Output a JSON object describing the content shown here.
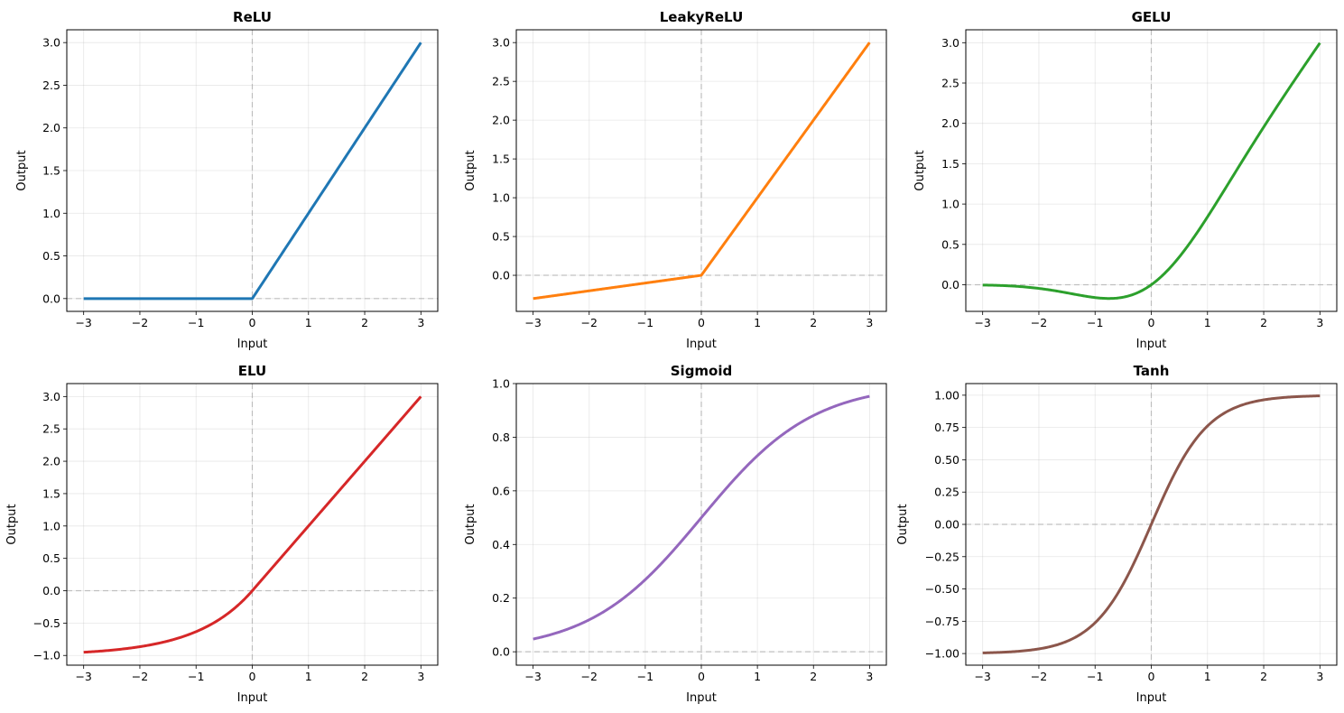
{
  "chart_data": [
    {
      "type": "line",
      "title": "ReLU",
      "xlabel": "Input",
      "ylabel": "Output",
      "function": "relu",
      "color": "#1f77b4",
      "xlim": [
        -3.3,
        3.3
      ],
      "ylim": [
        -0.15,
        3.15
      ],
      "xticks": [
        -3,
        -2,
        -1,
        0,
        1,
        2,
        3
      ],
      "xtick_labels": [
        "−3",
        "−2",
        "−1",
        "0",
        "1",
        "2",
        "3"
      ],
      "yticks": [
        0,
        0.5,
        1,
        1.5,
        2,
        2.5,
        3
      ],
      "ytick_labels": [
        "0.0",
        "0.5",
        "1.0",
        "1.5",
        "2.0",
        "2.5",
        "3.0"
      ],
      "x": [
        -3,
        -2,
        -1,
        0,
        1,
        2,
        3
      ],
      "y": [
        0,
        0,
        0,
        0,
        1,
        2,
        3
      ],
      "grid": true
    },
    {
      "type": "line",
      "title": "LeakyReLU",
      "xlabel": "Input",
      "ylabel": "Output",
      "function": "leakyrelu",
      "color": "#ff7f0e",
      "xlim": [
        -3.3,
        3.3
      ],
      "ylim": [
        -0.465,
        3.165
      ],
      "xticks": [
        -3,
        -2,
        -1,
        0,
        1,
        2,
        3
      ],
      "xtick_labels": [
        "−3",
        "−2",
        "−1",
        "0",
        "1",
        "2",
        "3"
      ],
      "yticks": [
        0,
        0.5,
        1,
        1.5,
        2,
        2.5,
        3
      ],
      "ytick_labels": [
        "0.0",
        "0.5",
        "1.0",
        "1.5",
        "2.0",
        "2.5",
        "3.0"
      ],
      "x": [
        -3,
        -2,
        -1,
        0,
        1,
        2,
        3
      ],
      "y": [
        -0.3,
        -0.2,
        -0.1,
        0,
        1,
        2,
        3
      ],
      "grid": true
    },
    {
      "type": "line",
      "title": "GELU",
      "xlabel": "Input",
      "ylabel": "Output",
      "function": "gelu",
      "color": "#2ca02c",
      "xlim": [
        -3.3,
        3.3
      ],
      "ylim": [
        -0.33,
        3.16
      ],
      "xticks": [
        -3,
        -2,
        -1,
        0,
        1,
        2,
        3
      ],
      "xtick_labels": [
        "−3",
        "−2",
        "−1",
        "0",
        "1",
        "2",
        "3"
      ],
      "yticks": [
        0,
        0.5,
        1,
        1.5,
        2,
        2.5,
        3
      ],
      "ytick_labels": [
        "0.0",
        "0.5",
        "1.0",
        "1.5",
        "2.0",
        "2.5",
        "3.0"
      ],
      "x": [
        -3,
        -2,
        -1,
        -0.75,
        0,
        1,
        2,
        3
      ],
      "y": [
        -0.004,
        -0.045,
        -0.159,
        -0.17,
        0,
        0.841,
        1.955,
        2.996
      ],
      "grid": true
    },
    {
      "type": "line",
      "title": "ELU",
      "xlabel": "Input",
      "ylabel": "Output",
      "function": "elu",
      "color": "#d62728",
      "xlim": [
        -3.3,
        3.3
      ],
      "ylim": [
        -1.15,
        3.2
      ],
      "xticks": [
        -3,
        -2,
        -1,
        0,
        1,
        2,
        3
      ],
      "xtick_labels": [
        "−3",
        "−2",
        "−1",
        "0",
        "1",
        "2",
        "3"
      ],
      "yticks": [
        -1,
        -0.5,
        0,
        0.5,
        1,
        1.5,
        2,
        2.5,
        3
      ],
      "ytick_labels": [
        "−1.0",
        "−0.5",
        "0.0",
        "0.5",
        "1.0",
        "1.5",
        "2.0",
        "2.5",
        "3.0"
      ],
      "x": [
        -3,
        -2,
        -1,
        0,
        1,
        2,
        3
      ],
      "y": [
        -0.95,
        -0.865,
        -0.632,
        0,
        1,
        2,
        3
      ],
      "grid": true
    },
    {
      "type": "line",
      "title": "Sigmoid",
      "xlabel": "Input",
      "ylabel": "Output",
      "function": "sigmoid",
      "color": "#9467bd",
      "xlim": [
        -3.3,
        3.3
      ],
      "ylim": [
        -0.05,
        1.0
      ],
      "xticks": [
        -3,
        -2,
        -1,
        0,
        1,
        2,
        3
      ],
      "xtick_labels": [
        "−3",
        "−2",
        "−1",
        "0",
        "1",
        "2",
        "3"
      ],
      "yticks": [
        0,
        0.2,
        0.4,
        0.6,
        0.8,
        1.0
      ],
      "ytick_labels": [
        "0.0",
        "0.2",
        "0.4",
        "0.6",
        "0.8",
        "1.0"
      ],
      "x": [
        -3,
        -2,
        -1,
        0,
        1,
        2,
        3
      ],
      "y": [
        0.047,
        0.119,
        0.269,
        0.5,
        0.731,
        0.881,
        0.953
      ],
      "grid": true
    },
    {
      "type": "line",
      "title": "Tanh",
      "xlabel": "Input",
      "ylabel": "Output",
      "function": "tanh",
      "color": "#8c564b",
      "xlim": [
        -3.3,
        3.3
      ],
      "ylim": [
        -1.09,
        1.09
      ],
      "xticks": [
        -3,
        -2,
        -1,
        0,
        1,
        2,
        3
      ],
      "xtick_labels": [
        "−3",
        "−2",
        "−1",
        "0",
        "1",
        "2",
        "3"
      ],
      "yticks": [
        -1,
        -0.75,
        -0.5,
        -0.25,
        0,
        0.25,
        0.5,
        0.75,
        1
      ],
      "ytick_labels": [
        "−1.00",
        "−0.75",
        "−0.50",
        "−0.25",
        "0.00",
        "0.25",
        "0.50",
        "0.75",
        "1.00"
      ],
      "x": [
        -3,
        -2,
        -1,
        0,
        1,
        2,
        3
      ],
      "y": [
        -0.995,
        -0.964,
        -0.762,
        0,
        0.762,
        0.964,
        0.995
      ],
      "grid": true
    }
  ]
}
